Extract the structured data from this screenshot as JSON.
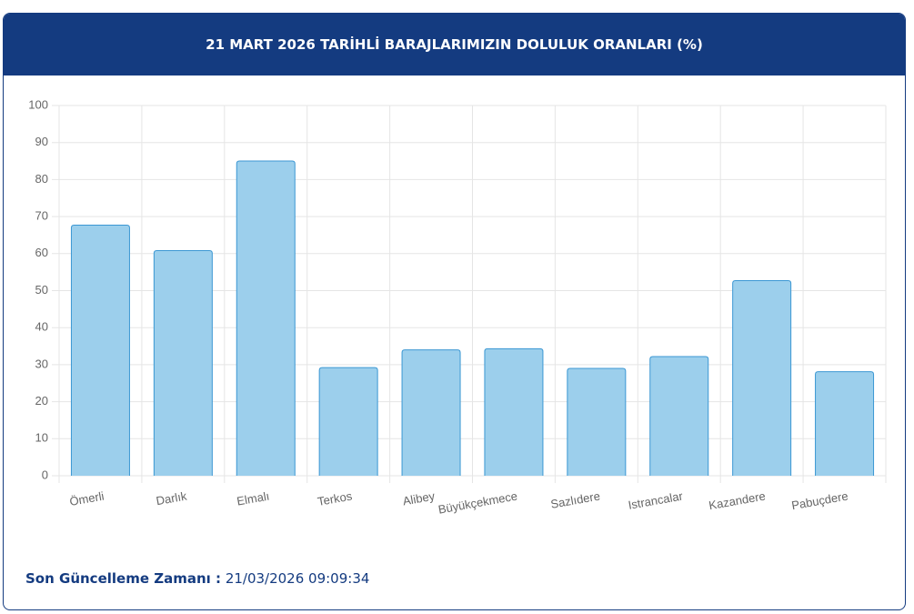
{
  "header": {
    "title": "21 MART 2026 TARİHLİ BARAJLARIMIZIN DOLULUK ORANLARI (%)"
  },
  "chart_data": {
    "type": "bar",
    "categories": [
      "Ömerli",
      "Darlık",
      "Elmalı",
      "Terkos",
      "Alibey",
      "Büyükçekmece",
      "Sazlıdere",
      "Istrancalar",
      "Kazandere",
      "Pabuçdere"
    ],
    "values": [
      67.7,
      60.8,
      85,
      29.2,
      34,
      34.3,
      29,
      32.2,
      52.7,
      28.1
    ],
    "color": "#9ccfec",
    "border_color": "#3b97d3",
    "ylim": [
      0,
      100
    ],
    "yticks": [
      0,
      10,
      20,
      30,
      40,
      50,
      60,
      70,
      80,
      90,
      100
    ],
    "grid": true
  },
  "footer": {
    "label": "Son Güncelleme Zamanı :",
    "value": "21/03/2026 09:09:34"
  }
}
